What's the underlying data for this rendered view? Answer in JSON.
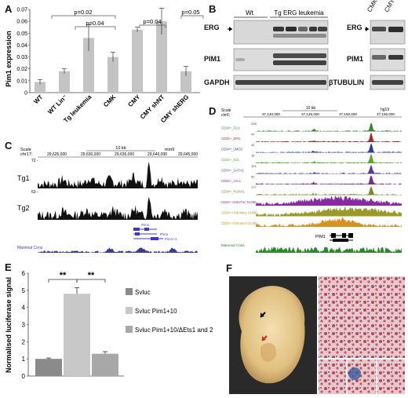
{
  "panels": {
    "A": "A",
    "B": "B",
    "C": "C",
    "D": "D",
    "E": "E",
    "F": "F"
  },
  "panelA": {
    "chart_data": {
      "type": "bar",
      "ylabel": "Pim1 expression",
      "ylim": [
        0,
        0.07
      ],
      "yticks": [
        "0",
        "0.01",
        "0.02",
        "0.03",
        "0.04",
        "0.05",
        "0.06",
        "0.07"
      ],
      "categories": [
        "WT",
        "WT Lin⁻",
        "Tg leukemia",
        "CMK",
        "CMY",
        "CMY shNT",
        "CMY shERG"
      ],
      "values": [
        0.009,
        0.018,
        0.046,
        0.03,
        0.053,
        0.06,
        0.018
      ],
      "errors": [
        0.002,
        0.002,
        0.011,
        0.004,
        0.002,
        0.011,
        0.004
      ],
      "significance": [
        "p=0.02",
        "p=0.04",
        "p=0.04",
        "p=0.05"
      ]
    }
  },
  "panelB": {
    "groups": [
      "Wt",
      "Tg ERG leukemia"
    ],
    "rows": [
      "ERG",
      "PIM1",
      "GAPDH"
    ],
    "right_cols": [
      "CMK",
      "CMY"
    ],
    "right_rows": [
      "ERG",
      "PIM1",
      "βTUBULIN"
    ]
  },
  "panelC": {
    "scale_label": "Scale",
    "scale_value": "10 kb",
    "genome": "mm9",
    "chr_label": "chr17:",
    "coords": [
      "29,625,000",
      "29,630,000",
      "29,635,000",
      "29,640,000",
      "29,645,000"
    ],
    "tracks": [
      "Tg1",
      "Tg2"
    ],
    "track_max": [
      "72 -",
      "63 -"
    ],
    "genes": [
      "Pim1",
      "Pim1",
      "Pim1+1"
    ],
    "cons": "Mammal Cons"
  },
  "panelD": {
    "scale_label": "Scale",
    "scale_value": "10 kb",
    "genome": "hg19",
    "chr_label": "chr6:",
    "coords": [
      "37,140,000",
      "37,145,000",
      "37,150,000",
      "37,155,000"
    ],
    "tracks": [
      {
        "name": "CD34+_FLI1",
        "max": "235",
        "color": "#3a8a3a"
      },
      {
        "name": "CD34+_ERG",
        "max": "47",
        "color": "#a0302a"
      },
      {
        "name": "CD34+_LMO2",
        "max": "41",
        "color": "#2a3aa8"
      },
      {
        "name": "CD34+_SCL",
        "max": "16",
        "color": "#58a830"
      },
      {
        "name": "CD34+_GATA2",
        "max": "121",
        "color": "#5a3a9a"
      },
      {
        "name": "CD34+_LYL1",
        "max": "52",
        "color": "#7a2a8a"
      },
      {
        "name": "CD34+_RUNX1",
        "max": "177",
        "color": "#7a8a2a"
      },
      {
        "name": "CD34+ H3K27ac 01480",
        "max": "",
        "color": "#8a2aa0"
      },
      {
        "name": "CD34+ H3K4me1 01480",
        "max": "",
        "color": "#9a9a2a"
      },
      {
        "name": "CD34+ H3K4me3 01480",
        "max": "",
        "color": "#d89020"
      }
    ],
    "gene": "PIM1",
    "cons": "Mammal Cons"
  },
  "panelE": {
    "chart_data": {
      "type": "bar",
      "ylabel": "Normalised luciferase signal",
      "ylim": [
        0,
        6
      ],
      "yticks": [
        "0",
        "1",
        "2",
        "3",
        "4",
        "5",
        "6"
      ],
      "values": [
        1.0,
        4.8,
        1.3
      ],
      "errors": [
        0.05,
        0.35,
        0.12
      ],
      "colors": [
        "#8a8a8a",
        "#c8c8c8",
        "#a8a8a8"
      ],
      "legend": [
        "Svluc",
        "Svluc Pim1+10",
        "Svluc Pim1+10/ΔEts1 and 2"
      ],
      "significance": [
        "**",
        "**"
      ]
    }
  }
}
